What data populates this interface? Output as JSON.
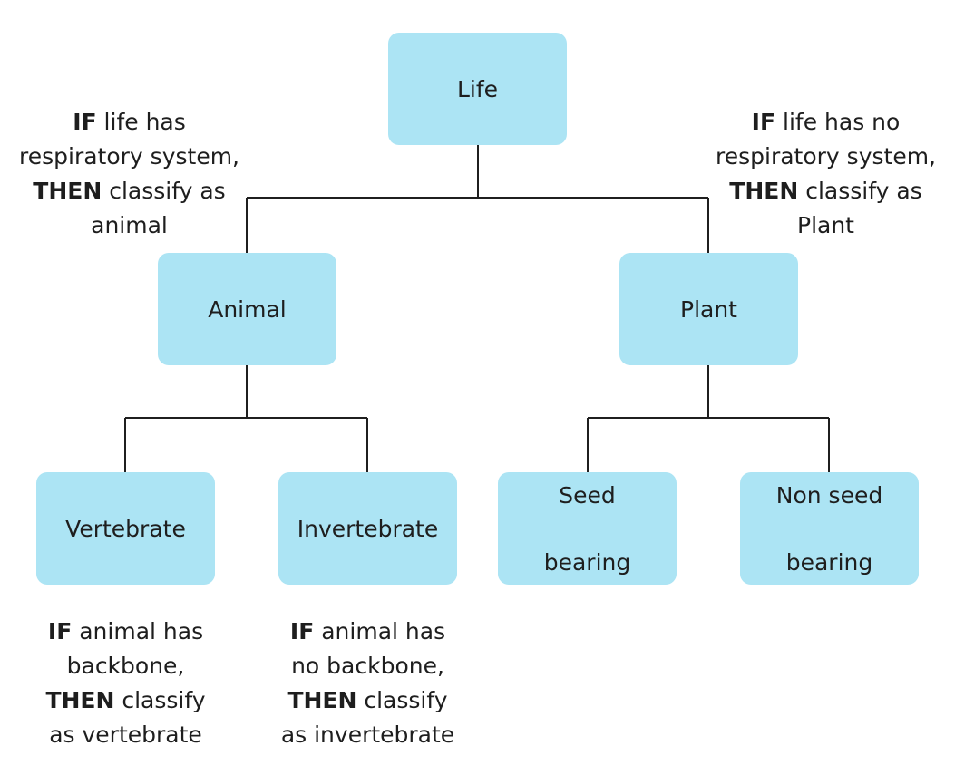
{
  "nodes": {
    "life": "Life",
    "animal": "Animal",
    "plant": "Plant",
    "vertebrate": "Vertebrate",
    "invertebrate": "Invertebrate",
    "seed_bearing": [
      "Seed",
      "bearing"
    ],
    "non_seed_bearing": [
      "Non seed",
      "bearing"
    ]
  },
  "rules": {
    "animal": {
      "line1": {
        "kw": "IF",
        "rest": " life has"
      },
      "line2": "respiratory system,",
      "line3": {
        "kw": "THEN",
        "rest": " classify as"
      },
      "line4": "animal"
    },
    "plant": {
      "line1": {
        "kw": "IF",
        "rest": " life has no"
      },
      "line2": "respiratory system,",
      "line3": {
        "kw": "THEN",
        "rest": " classify as"
      },
      "line4": "Plant"
    },
    "vertebrate": {
      "line1": {
        "kw": "IF",
        "rest": " animal has"
      },
      "line2": "backbone,",
      "line3": {
        "kw": "THEN",
        "rest": " classify"
      },
      "line4": "as vertebrate"
    },
    "invertebrate": {
      "line1": {
        "kw": "IF",
        "rest": " animal has"
      },
      "line2": "no backbone,",
      "line3": {
        "kw": "THEN",
        "rest": " classify"
      },
      "line4": "as invertebrate"
    }
  },
  "colors": {
    "node_fill": "#ace4f4",
    "line": "#1f1f1f",
    "text": "#1e1e1e"
  }
}
